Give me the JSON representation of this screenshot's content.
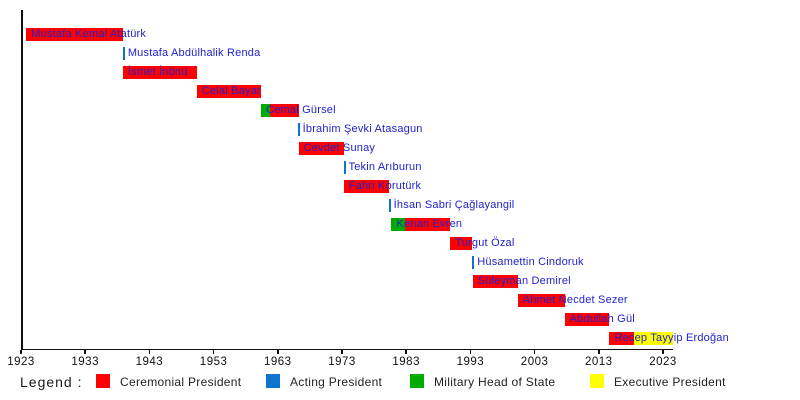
{
  "chart_data": {
    "type": "bar",
    "subtype": "gantt-timeline",
    "title": "",
    "xlabel": "",
    "ylabel": "",
    "grid": false,
    "x_axis": {
      "min": 1923,
      "max": 2024.6,
      "ticks": [
        1923,
        1933,
        1943,
        1953,
        1963,
        1973,
        1983,
        1993,
        2003,
        2013,
        2023
      ]
    },
    "label_color": "#2222cc",
    "axis_color": "#111111",
    "legend": {
      "label": "Legend :",
      "position": "bottom",
      "items": [
        {
          "key": "ceremonial",
          "label": "Ceremonial President",
          "color": "#ff0000"
        },
        {
          "key": "acting",
          "label": "Acting President",
          "color": "#0d74ce"
        },
        {
          "key": "military",
          "label": "Military Head of State",
          "color": "#00ac00"
        },
        {
          "key": "executive",
          "label": "Executive President",
          "color": "#ffff00"
        }
      ]
    },
    "rows": [
      {
        "label": "Mustafa Kemal Atatürk",
        "segments": [
          {
            "category": "Ceremonial President",
            "start": 1923.82,
            "end": 1938.86
          }
        ]
      },
      {
        "label": "Mustafa Abdülhalik Renda",
        "segments": [
          {
            "category": "Acting President",
            "start": 1938.86,
            "end": 1938.87
          }
        ]
      },
      {
        "label": "İsmet İnönü",
        "segments": [
          {
            "category": "Ceremonial President",
            "start": 1938.87,
            "end": 1950.39
          }
        ]
      },
      {
        "label": "Celal Bayar",
        "segments": [
          {
            "category": "Ceremonial President",
            "start": 1950.39,
            "end": 1960.4
          }
        ]
      },
      {
        "label": "Cemal Gürsel",
        "segments": [
          {
            "category": "Military Head of State",
            "start": 1960.4,
            "end": 1961.82
          },
          {
            "category": "Ceremonial President",
            "start": 1961.82,
            "end": 1966.24
          }
        ]
      },
      {
        "label": "İbrahim Şevki Atasagun",
        "segments": [
          {
            "category": "Acting President",
            "start": 1966.09,
            "end": 1966.24
          }
        ]
      },
      {
        "label": "Cevdet Sunay",
        "segments": [
          {
            "category": "Ceremonial President",
            "start": 1966.24,
            "end": 1973.24
          }
        ]
      },
      {
        "label": "Tekin Arıburun",
        "segments": [
          {
            "category": "Acting President",
            "start": 1973.24,
            "end": 1973.27
          }
        ]
      },
      {
        "label": "Fahri Korutürk",
        "segments": [
          {
            "category": "Ceremonial President",
            "start": 1973.27,
            "end": 1980.27
          }
        ]
      },
      {
        "label": "İhsan Sabri Çağlayangil",
        "segments": [
          {
            "category": "Acting President",
            "start": 1980.27,
            "end": 1980.7
          }
        ]
      },
      {
        "label": "Kenan Evren",
        "segments": [
          {
            "category": "Military Head of State",
            "start": 1980.7,
            "end": 1982.86
          },
          {
            "category": "Ceremonial President",
            "start": 1982.86,
            "end": 1989.86
          }
        ]
      },
      {
        "label": "Turgut Özal",
        "segments": [
          {
            "category": "Ceremonial President",
            "start": 1989.86,
            "end": 1993.29
          }
        ]
      },
      {
        "label": "Hüsamettin Cindoruk",
        "segments": [
          {
            "category": "Acting President",
            "start": 1993.29,
            "end": 1993.37
          }
        ]
      },
      {
        "label": "Süleyman Demirel",
        "segments": [
          {
            "category": "Ceremonial President",
            "start": 1993.37,
            "end": 2000.37
          }
        ]
      },
      {
        "label": "Ahmet Necdet Sezer",
        "segments": [
          {
            "category": "Ceremonial President",
            "start": 2000.37,
            "end": 2007.66
          }
        ]
      },
      {
        "label": "Abdullah Gül",
        "segments": [
          {
            "category": "Ceremonial President",
            "start": 2007.66,
            "end": 2014.66
          }
        ]
      },
      {
        "label": "Recep Tayyip Erdoğan",
        "segments": [
          {
            "category": "Ceremonial President",
            "start": 2014.66,
            "end": 2018.52
          },
          {
            "category": "Executive President",
            "start": 2018.52,
            "end": 2024.6
          }
        ]
      }
    ]
  }
}
